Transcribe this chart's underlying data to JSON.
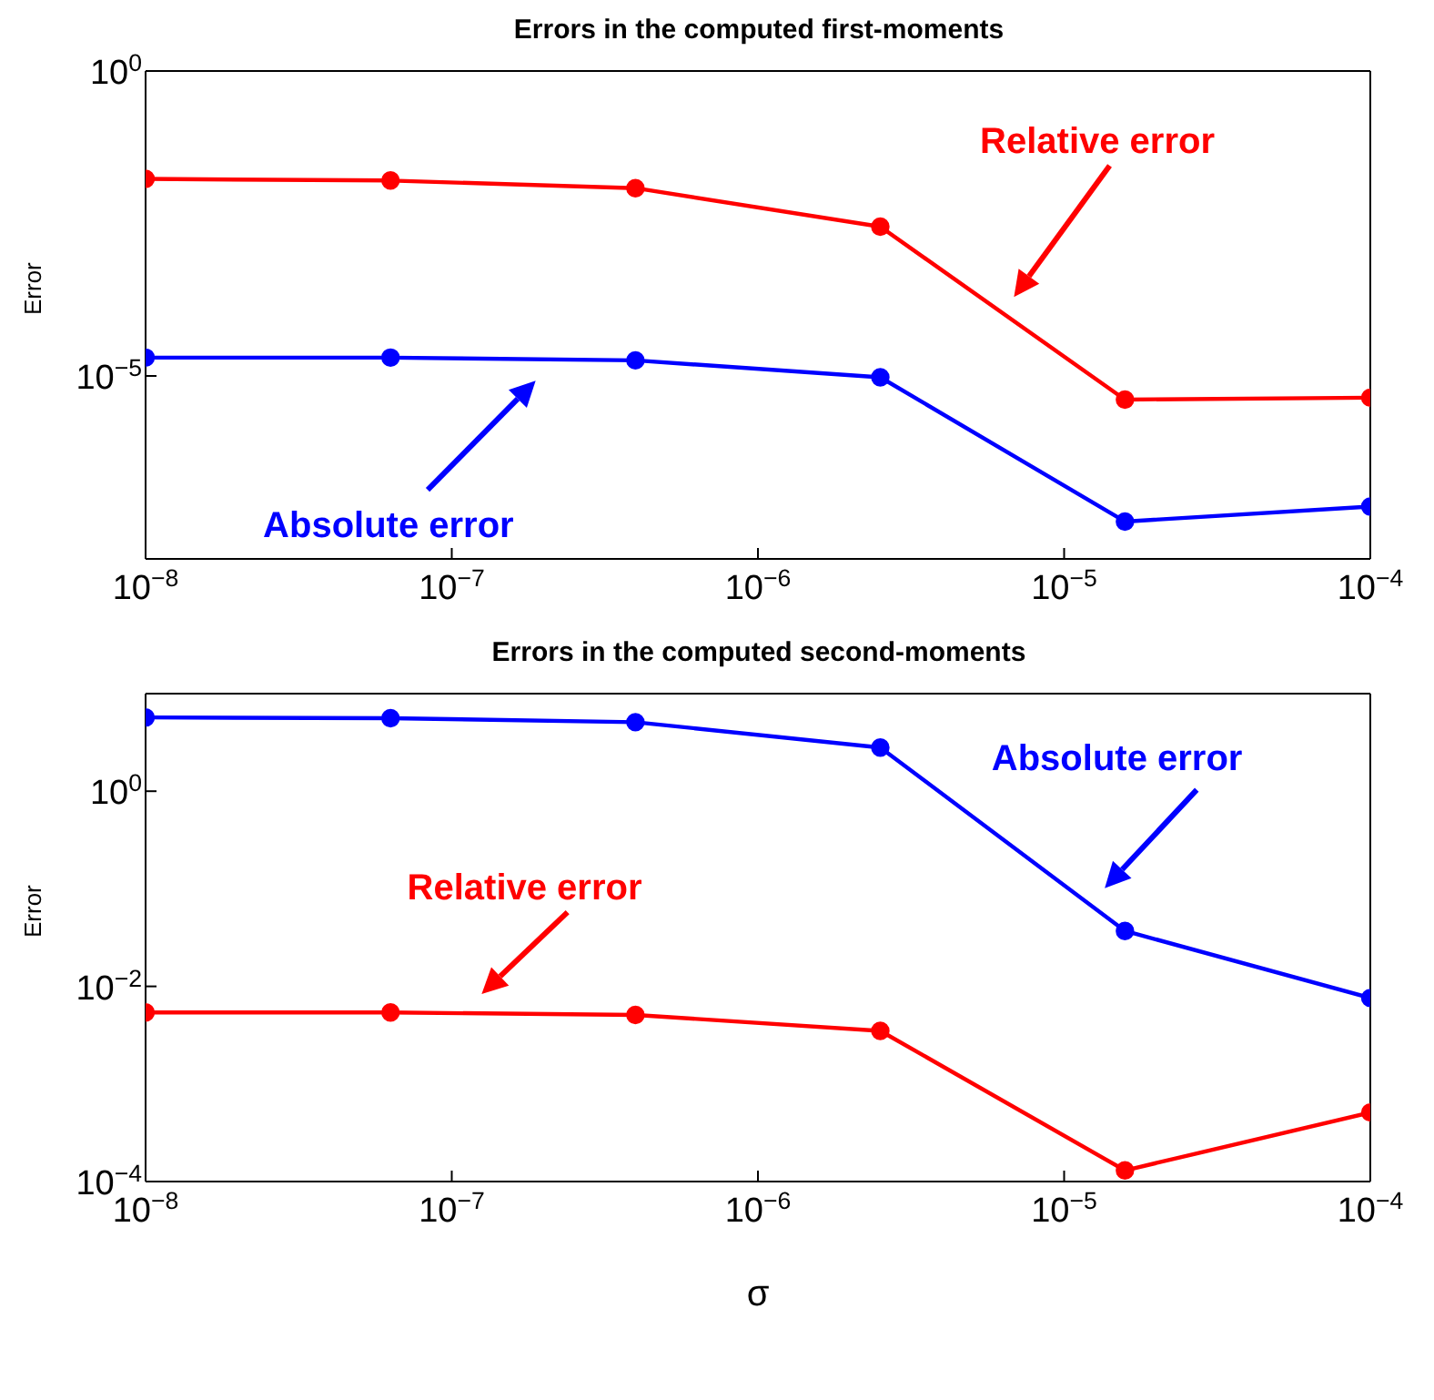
{
  "chart_data": [
    {
      "type": "line",
      "title": "Errors in the computed first-moments",
      "ylabel": "Error",
      "log": "xy",
      "marker": "circle",
      "line_style": "solid",
      "x": [
        1e-08,
        6.31e-08,
        3.98e-07,
        2.51e-06,
        1.58e-05,
        0.0001
      ],
      "series": [
        {
          "name": "Relative error",
          "color": "#ff0000",
          "values": [
            0.017,
            0.016,
            0.012,
            0.0028,
            4.1e-06,
            4.4e-06
          ]
        },
        {
          "name": "Absolute error",
          "color": "#0000ff",
          "values": [
            2e-05,
            2e-05,
            1.8e-05,
            9.5e-06,
            4.1e-08,
            7.2e-08
          ]
        }
      ],
      "xlim": [
        1e-08,
        0.0001
      ],
      "xticks": [
        {
          "value": 1e-08,
          "label": "10$^{−8}$"
        },
        {
          "value": 1e-07,
          "label": "10$^{−7}$"
        },
        {
          "value": 1e-06,
          "label": "10$^{−6}$"
        },
        {
          "value": 1e-05,
          "label": "10$^{−5}$"
        },
        {
          "value": 0.0001,
          "label": "10$^{−4}$"
        }
      ],
      "ylim": [
        1e-08,
        1
      ],
      "yticks": [
        {
          "value": 1e-05,
          "label": "10$^{−5}$"
        },
        {
          "value": 1,
          "label": "10$^{0}$"
        }
      ]
    },
    {
      "type": "line",
      "title": "Errors in the computed second-moments",
      "xlabel": "σ",
      "ylabel": "Error",
      "log": "xy",
      "marker": "circle",
      "line_style": "solid",
      "x": [
        1e-08,
        6.31e-08,
        3.98e-07,
        2.51e-06,
        1.58e-05,
        0.0001
      ],
      "series": [
        {
          "name": "Relative error",
          "color": "#ff0000",
          "values": [
            0.0054,
            0.0054,
            0.0051,
            0.0035,
            0.00013,
            0.00051
          ]
        },
        {
          "name": "Absolute error",
          "color": "#0000ff",
          "values": [
            5.7,
            5.6,
            5.1,
            2.8,
            0.037,
            0.0076
          ]
        }
      ],
      "xlim": [
        1e-08,
        0.0001
      ],
      "xticks": [
        {
          "value": 1e-08,
          "label": "10$^{−8}$"
        },
        {
          "value": 1e-07,
          "label": "10$^{−7}$"
        },
        {
          "value": 1e-06,
          "label": "10$^{−6}$"
        },
        {
          "value": 1e-05,
          "label": "10$^{−5}$"
        },
        {
          "value": 0.0001,
          "label": "10$^{−4}$"
        }
      ],
      "ylim": [
        0.0001,
        10
      ],
      "yticks": [
        {
          "value": 0.0001,
          "label": "10$^{−4}$"
        },
        {
          "value": 0.01,
          "label": "10$^{−2}$"
        },
        {
          "value": 1,
          "label": "10$^{0}$"
        }
      ]
    }
  ]
}
